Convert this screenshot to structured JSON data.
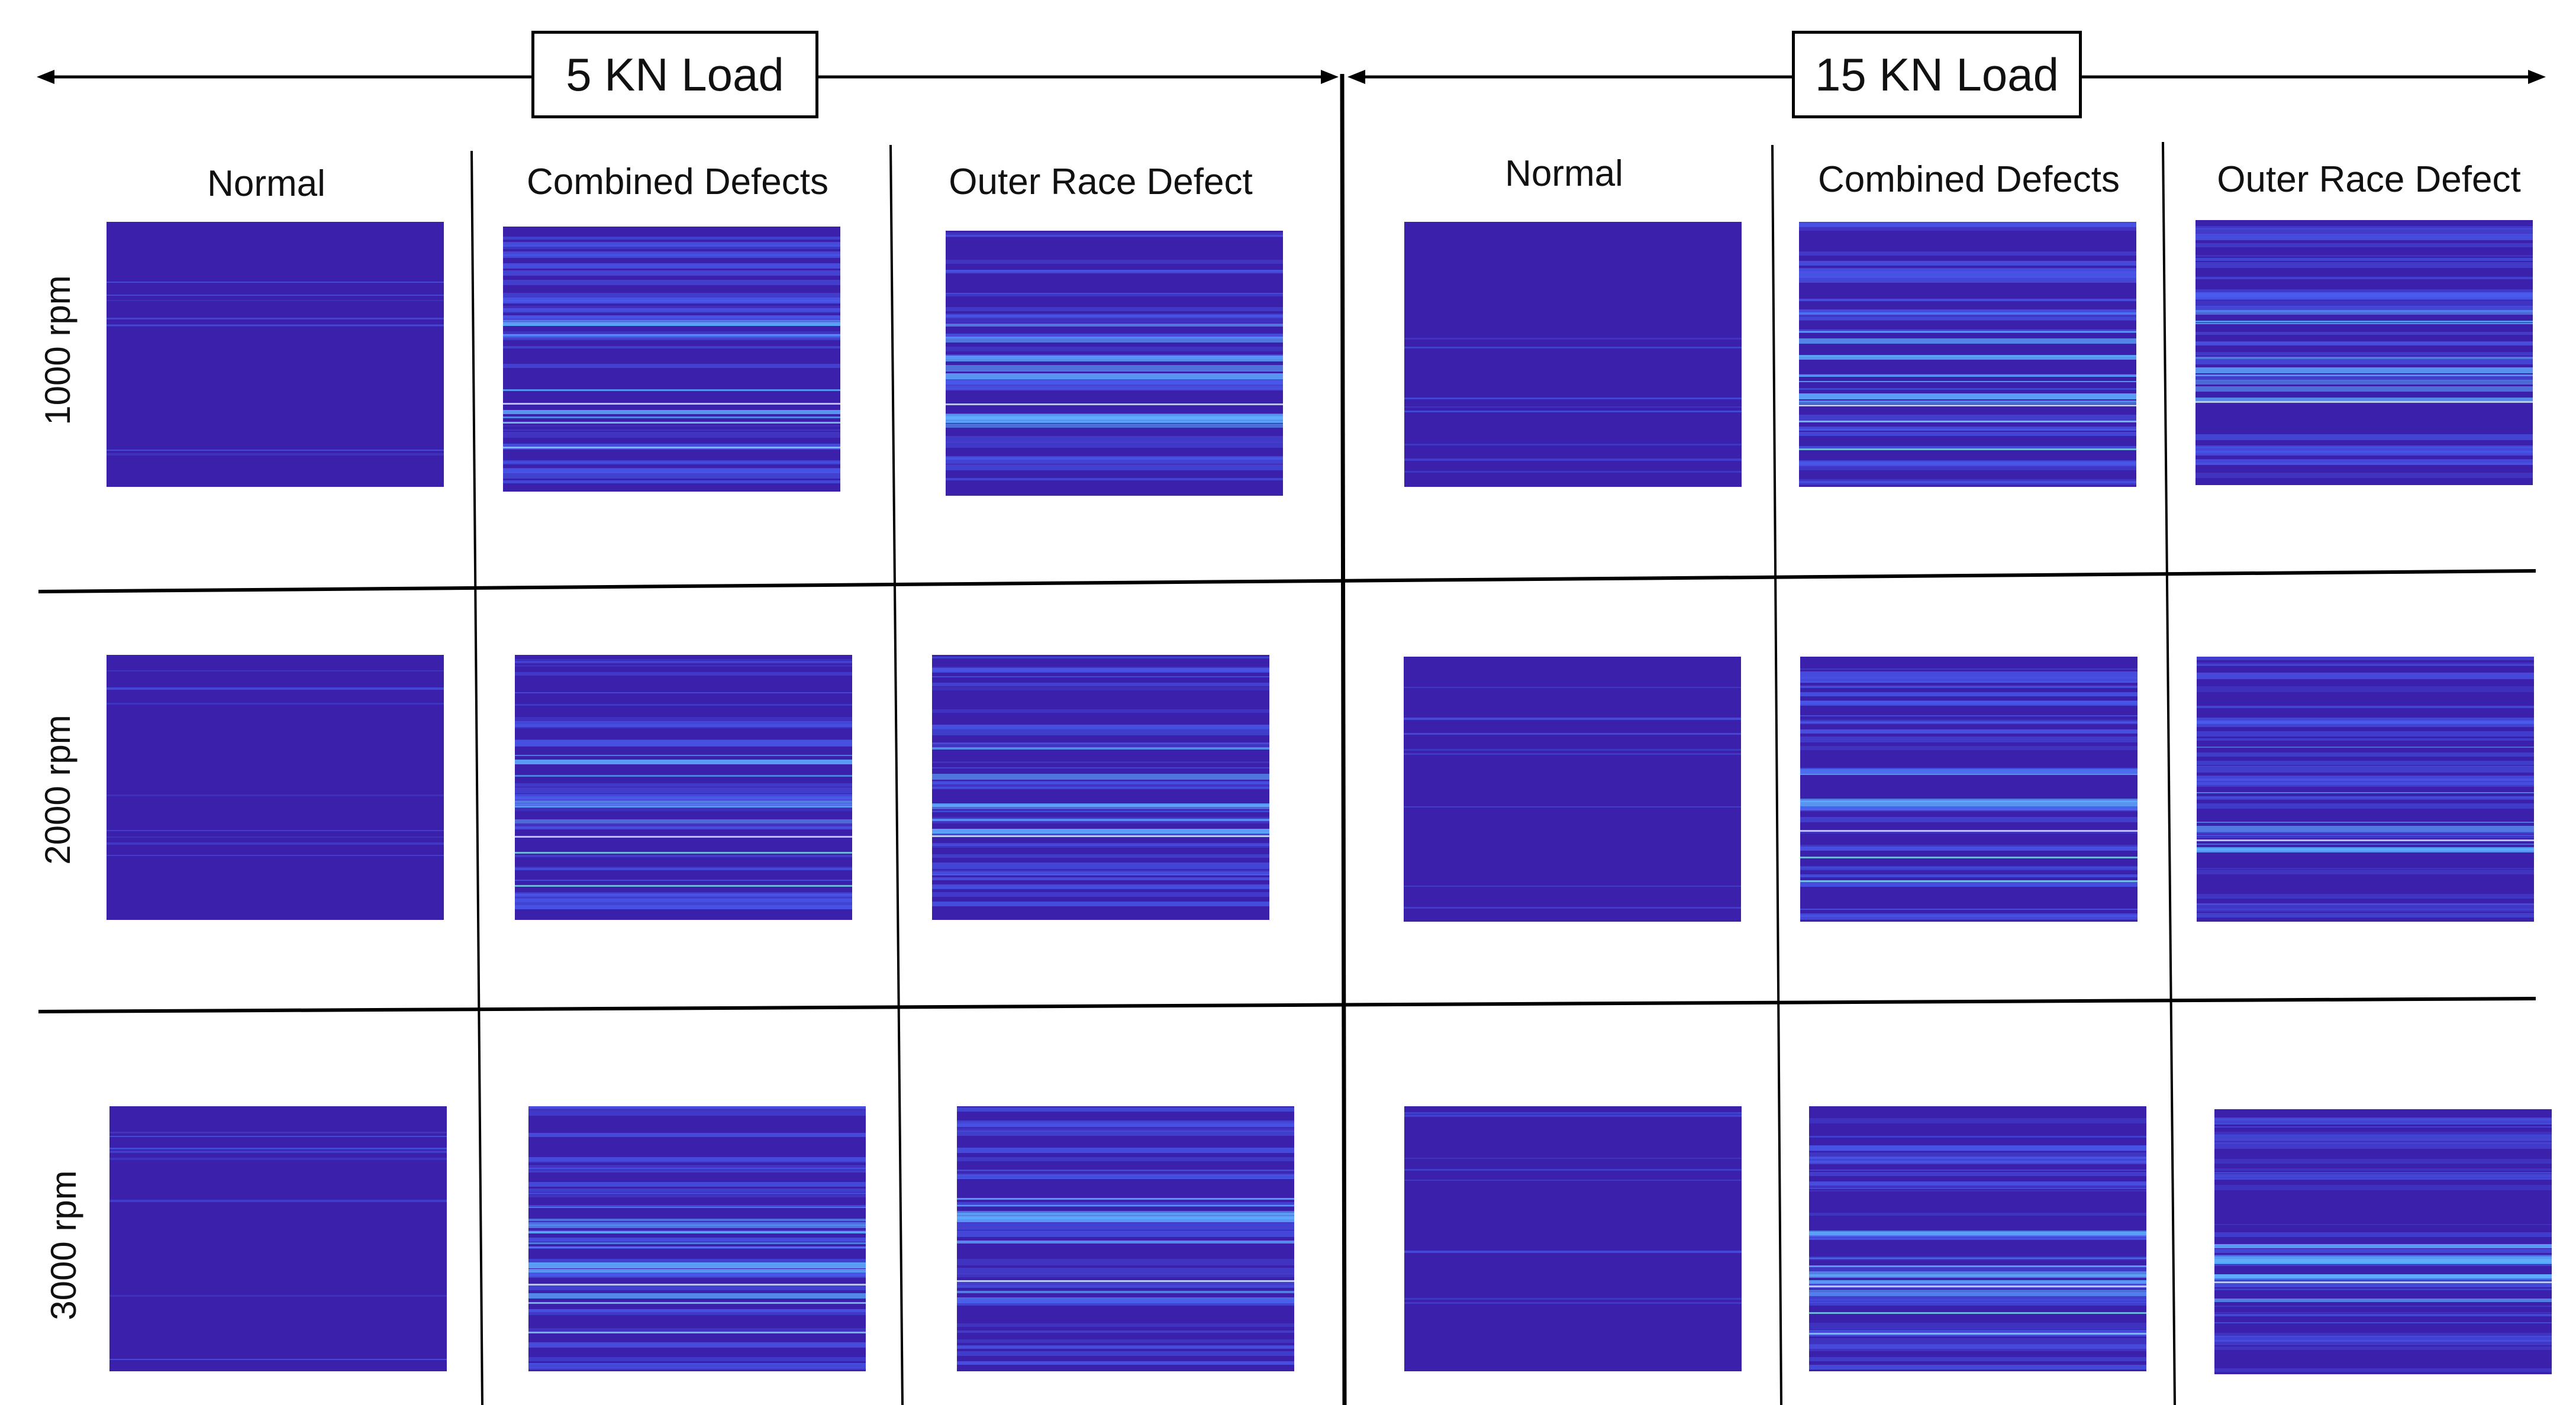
{
  "loads": [
    {
      "label": "5 KN Load"
    },
    {
      "label": "15 KN Load"
    }
  ],
  "columns": [
    "Normal",
    "Combined Defects",
    "Outer Race Defect"
  ],
  "rows": [
    "1000 rpm",
    "2000 rpm",
    "3000 rpm"
  ],
  "colors": {
    "panel_base": "#3a20aa",
    "band": "#4a5df0",
    "bright_band": "#5fb0ff",
    "highlight_line": "#d8e8ff",
    "teal_line": "#7fd8e8",
    "grid_line": "#000000"
  }
}
